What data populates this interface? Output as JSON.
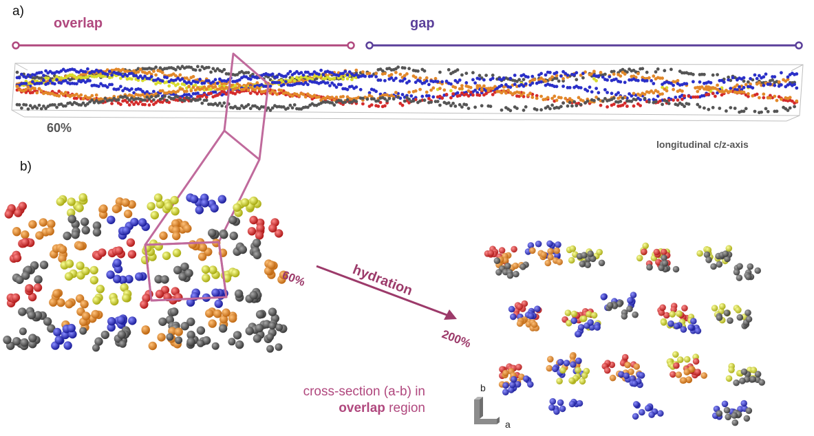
{
  "panels": {
    "a": "a)",
    "b": "b)"
  },
  "regions": {
    "overlap": "overlap",
    "gap": "gap"
  },
  "hydration": {
    "label": "hydration",
    "from": "60%",
    "to": "200%"
  },
  "fibril_label": "60%",
  "axis_label": "longitudinal c/z-axis",
  "cross_section": {
    "line1": "cross-section (a-b) in",
    "emph": "overlap",
    "rest": " region"
  },
  "axes_glyph": {
    "b": "b",
    "a": "a"
  },
  "colors": {
    "overlap": "#b0487e",
    "gap": "#5a3f9a",
    "hydration": "#9c3a6a",
    "strand_red": "#d42b2b",
    "strand_orange": "#e2882a",
    "strand_yellow": "#d8dc2e",
    "strand_blue": "#2a2fc8",
    "strand_grey": "#555555"
  }
}
